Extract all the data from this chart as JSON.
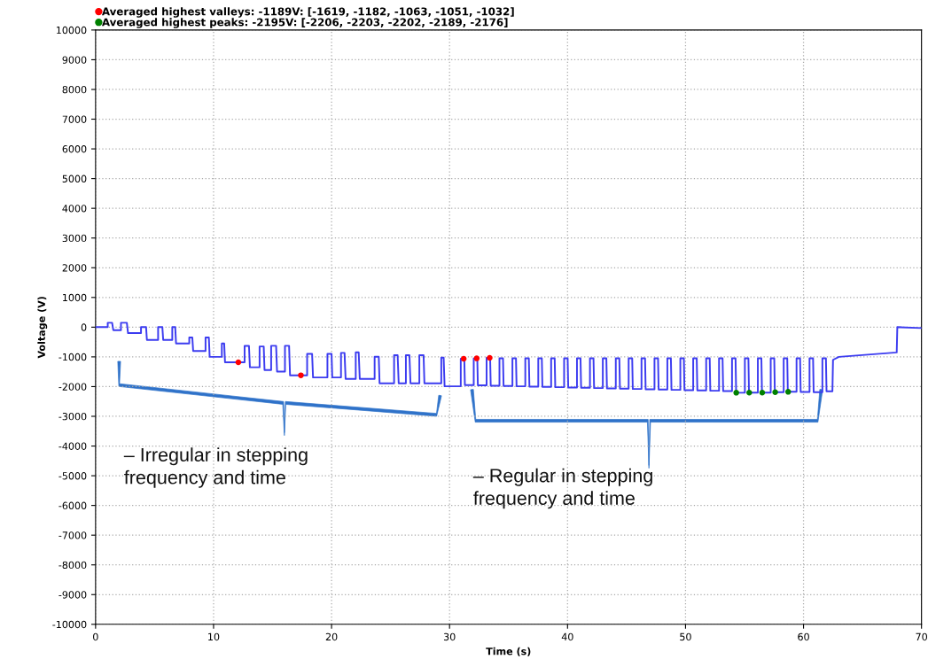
{
  "chart_data": {
    "type": "line",
    "xlabel": "Time (s)",
    "ylabel": "Voltage (V)",
    "xlim": [
      0,
      70
    ],
    "xticks": [
      0,
      10,
      20,
      30,
      40,
      50,
      60,
      70
    ],
    "ylim": [
      -10000,
      10000
    ],
    "yticks": [
      -10000,
      -9000,
      -8000,
      -7000,
      -6000,
      -5000,
      -4000,
      -3000,
      -2000,
      -1000,
      0,
      1000,
      2000,
      3000,
      4000,
      5000,
      6000,
      7000,
      8000,
      9000,
      10000
    ],
    "grid": true,
    "legend": "top left",
    "marker": "none",
    "line_style": "solid",
    "annotations": [
      "– Irregular in stepping\nfrequency and time",
      "– Regular in stepping\nfrequency and time"
    ],
    "series": [
      {
        "color": "#3c3cf0",
        "x": [
          0,
          1.03,
          1.03,
          1.4,
          1.5,
          2.15,
          2.15,
          2.65,
          2.75,
          3.85,
          3.85,
          4.28,
          4.35,
          5.3,
          5.3,
          5.66,
          5.73,
          6.5,
          6.5,
          6.75,
          6.82,
          7.94,
          7.94,
          8.2,
          8.27,
          9.32,
          9.32,
          9.6,
          9.67,
          10.7,
          10.7,
          10.9,
          10.97,
          12.63,
          12.63,
          13.0,
          13.08,
          13.9,
          13.9,
          14.25,
          14.32,
          14.88,
          14.88,
          15.3,
          15.38,
          16.05,
          16.05,
          16.4,
          16.48,
          17.93,
          17.93,
          18.35,
          18.43,
          19.65,
          19.65,
          20.0,
          20.06,
          20.8,
          20.8,
          21.1,
          21.19,
          22.05,
          22.05,
          22.3,
          22.39,
          23.65,
          23.65,
          24.0,
          24.07,
          25.3,
          25.3,
          25.6,
          25.69,
          26.3,
          26.3,
          26.6,
          26.69,
          27.44,
          27.44,
          27.8,
          27.87,
          29.3,
          29.3,
          29.5,
          29.58,
          30.95,
          30.95,
          31.25,
          31.3,
          32.05,
          32.05,
          32.35,
          32.4,
          33.14,
          33.14,
          33.44,
          33.49,
          34.23,
          34.23,
          34.53,
          34.58,
          35.33,
          35.33,
          35.63,
          35.68,
          36.42,
          36.42,
          36.72,
          36.77,
          37.52,
          37.52,
          37.82,
          37.87,
          38.61,
          38.61,
          38.91,
          38.96,
          39.71,
          39.71,
          40.01,
          40.06,
          40.8,
          40.8,
          41.1,
          41.15,
          41.9,
          41.9,
          42.2,
          42.25,
          42.99,
          42.99,
          43.29,
          43.34,
          44.09,
          44.09,
          44.39,
          44.44,
          45.18,
          45.18,
          45.48,
          45.53,
          46.27,
          46.27,
          46.57,
          46.62,
          47.37,
          47.37,
          47.67,
          47.72,
          48.46,
          48.46,
          48.76,
          48.81,
          49.56,
          49.56,
          49.86,
          49.91,
          50.65,
          50.65,
          50.95,
          51.0,
          51.75,
          51.75,
          52.05,
          52.1,
          52.84,
          52.84,
          53.14,
          53.19,
          53.94,
          53.94,
          54.24,
          54.29,
          55.03,
          55.03,
          55.33,
          55.38,
          56.13,
          56.13,
          56.43,
          56.48,
          57.22,
          57.22,
          57.52,
          57.57,
          58.32,
          58.32,
          58.62,
          58.67,
          59.41,
          59.41,
          59.71,
          59.76,
          60.51,
          60.51,
          60.81,
          60.86,
          61.6,
          61.6,
          61.9,
          61.95,
          62.45,
          62.5,
          63.0,
          67.9,
          67.95,
          70
        ],
        "values": [
          0,
          0,
          149,
          149,
          -100,
          -100,
          149,
          149,
          -199,
          -199,
          0,
          0,
          -430,
          -430,
          0,
          0,
          -430,
          -430,
          0,
          0,
          -550,
          -550,
          -350,
          -350,
          -800,
          -800,
          -350,
          -350,
          -1000,
          -1000,
          -550,
          -550,
          -1182,
          -1182,
          -630,
          -630,
          -1350,
          -1350,
          -650,
          -650,
          -1443,
          -1443,
          -627,
          -627,
          -1493,
          -1493,
          -627,
          -627,
          -1619,
          -1619,
          -896,
          -896,
          -1692,
          -1692,
          -896,
          -896,
          -1692,
          -1692,
          -866,
          -866,
          -1741,
          -1741,
          -846,
          -846,
          -1741,
          -1741,
          -995,
          -995,
          -1891,
          -1891,
          -945,
          -945,
          -1891,
          -1891,
          -945,
          -945,
          -1891,
          -1891,
          -945,
          -945,
          -1891,
          -1891,
          -1025,
          -1025,
          -1990,
          -1990,
          -1063,
          -1063,
          -1950,
          -1950,
          -1051,
          -1051,
          -1960,
          -1960,
          -1032,
          -1032,
          -1970,
          -1970,
          -1050,
          -1050,
          -1980,
          -1980,
          -1050,
          -1050,
          -1990,
          -1990,
          -1050,
          -1050,
          -2000,
          -2000,
          -1050,
          -1050,
          -2010,
          -2010,
          -1050,
          -1050,
          -2020,
          -2020,
          -1050,
          -1050,
          -2030,
          -2030,
          -1050,
          -1050,
          -2040,
          -2040,
          -1050,
          -1050,
          -2050,
          -2050,
          -1050,
          -1050,
          -2060,
          -2060,
          -1050,
          -1050,
          -2070,
          -2070,
          -1050,
          -1050,
          -2080,
          -2080,
          -1050,
          -1050,
          -2090,
          -2090,
          -1050,
          -1050,
          -2100,
          -2100,
          -1050,
          -1050,
          -2110,
          -2110,
          -1050,
          -1050,
          -2120,
          -2120,
          -1050,
          -1050,
          -2130,
          -2130,
          -1050,
          -1050,
          -2140,
          -2140,
          -1050,
          -1050,
          -2150,
          -2150,
          -1050,
          -1050,
          -2206,
          -2206,
          -1050,
          -1050,
          -2203,
          -2203,
          -1050,
          -1050,
          -2202,
          -2202,
          -1050,
          -1050,
          -2189,
          -2189,
          -1050,
          -1050,
          -2176,
          -2176,
          -1050,
          -1050,
          -2180,
          -2180,
          -1050,
          -1050,
          -2190,
          -2190,
          -1050,
          -1050,
          -2160,
          -2160,
          -1100,
          -1000,
          -850,
          0,
          -30
        ]
      },
      {
        "type": "scatter",
        "name": "Averaged highest valleys: -1189V: [-1619, -1182, -1063, -1051, -1032]",
        "color": "#ff0000",
        "marker": "circle",
        "x": [
          12.1,
          17.4,
          31.2,
          32.3,
          33.4
        ],
        "values": [
          -1182,
          -1619,
          -1063,
          -1051,
          -1032
        ]
      },
      {
        "type": "scatter",
        "name": "Averaged highest peaks: -2195V: [-2206, -2203, -2202, -2189, -2176]",
        "color": "#008000",
        "marker": "circle",
        "x": [
          54.3,
          55.4,
          56.5,
          57.6,
          58.7
        ],
        "values": [
          -2206,
          -2203,
          -2202,
          -2189,
          -2176
        ]
      }
    ]
  }
}
